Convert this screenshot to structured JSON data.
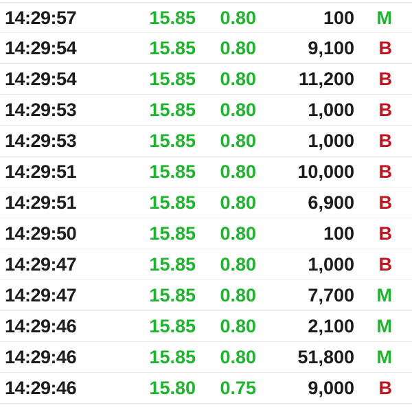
{
  "colors": {
    "up_green": "#1db52d",
    "down_red": "#c5121f",
    "text": "#1c1c1e",
    "separator": "#ececec",
    "background": "#ffffff"
  },
  "rows": [
    {
      "time": "14:29:57",
      "price": "15.85",
      "change": "0.80",
      "volume": "100",
      "side": "M",
      "side_class": "green"
    },
    {
      "time": "14:29:54",
      "price": "15.85",
      "change": "0.80",
      "volume": "9,100",
      "side": "B",
      "side_class": "red"
    },
    {
      "time": "14:29:54",
      "price": "15.85",
      "change": "0.80",
      "volume": "11,200",
      "side": "B",
      "side_class": "red"
    },
    {
      "time": "14:29:53",
      "price": "15.85",
      "change": "0.80",
      "volume": "1,000",
      "side": "B",
      "side_class": "red"
    },
    {
      "time": "14:29:53",
      "price": "15.85",
      "change": "0.80",
      "volume": "1,000",
      "side": "B",
      "side_class": "red"
    },
    {
      "time": "14:29:51",
      "price": "15.85",
      "change": "0.80",
      "volume": "10,000",
      "side": "B",
      "side_class": "red"
    },
    {
      "time": "14:29:51",
      "price": "15.85",
      "change": "0.80",
      "volume": "6,900",
      "side": "B",
      "side_class": "red"
    },
    {
      "time": "14:29:50",
      "price": "15.85",
      "change": "0.80",
      "volume": "100",
      "side": "B",
      "side_class": "red"
    },
    {
      "time": "14:29:47",
      "price": "15.85",
      "change": "0.80",
      "volume": "1,000",
      "side": "B",
      "side_class": "red"
    },
    {
      "time": "14:29:47",
      "price": "15.85",
      "change": "0.80",
      "volume": "7,700",
      "side": "M",
      "side_class": "green"
    },
    {
      "time": "14:29:46",
      "price": "15.85",
      "change": "0.80",
      "volume": "2,100",
      "side": "M",
      "side_class": "green"
    },
    {
      "time": "14:29:46",
      "price": "15.85",
      "change": "0.80",
      "volume": "51,800",
      "side": "M",
      "side_class": "green"
    },
    {
      "time": "14:29:46",
      "price": "15.80",
      "change": "0.75",
      "volume": "9,000",
      "side": "B",
      "side_class": "red"
    }
  ]
}
